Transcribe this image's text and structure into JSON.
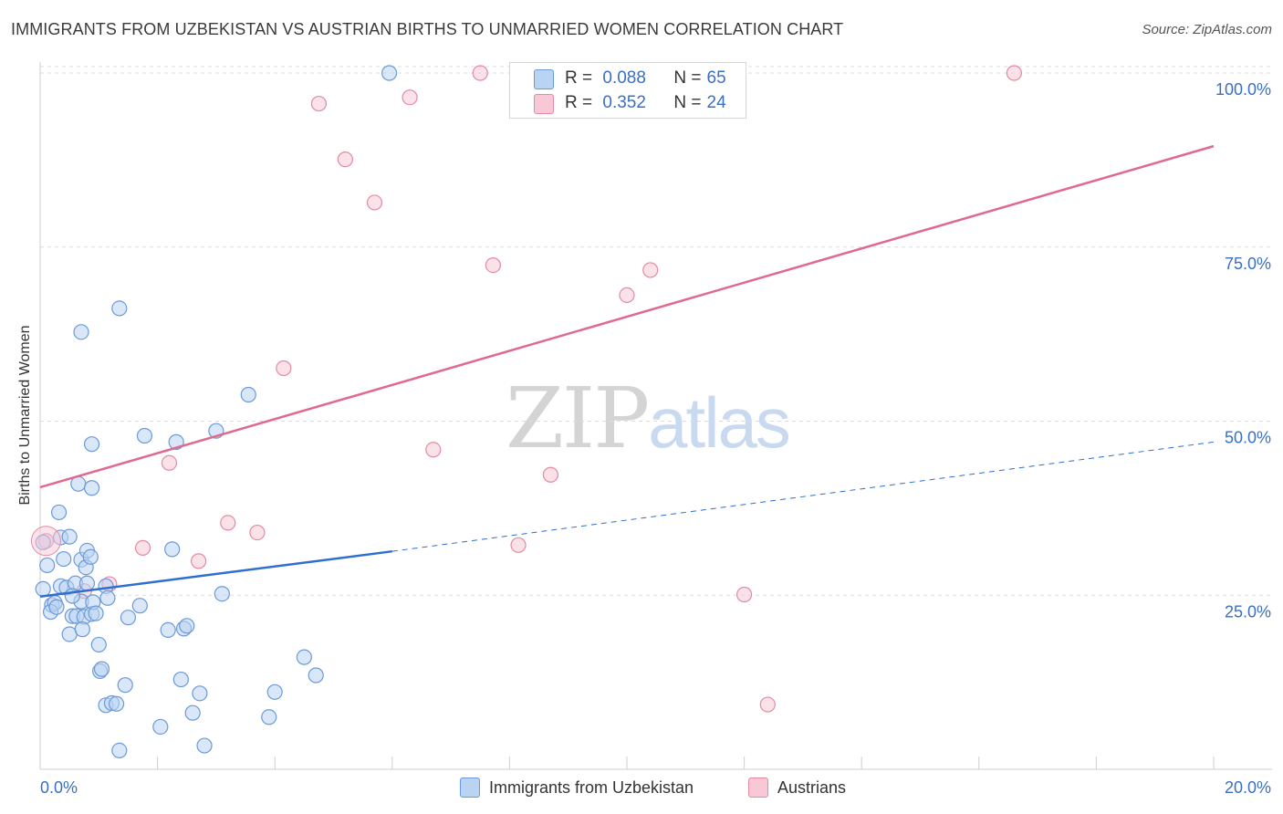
{
  "title": "IMMIGRANTS FROM UZBEKISTAN VS AUSTRIAN BIRTHS TO UNMARRIED WOMEN CORRELATION CHART",
  "source": "Source: ZipAtlas.com",
  "watermark": {
    "zip": "ZIP",
    "atlas": "atlas"
  },
  "legend_top": {
    "r_label": "R =",
    "n_label": "N =",
    "rows": [
      {
        "r": "0.088",
        "n": "65"
      },
      {
        "r": "0.352",
        "n": "24"
      }
    ]
  },
  "legend_bottom": [
    "Immigrants from Uzbekistan",
    "Austrians"
  ],
  "colors": {
    "blue_fill": "#b9d3f2",
    "blue_stroke": "#6a9ad8",
    "blue_line": "#2e6fd0",
    "pink_fill": "#f8c8d6",
    "pink_stroke": "#e28aa6",
    "pink_line": "#e06990",
    "tick_label": "#3a6fc4",
    "grid": "#dcdcdc"
  },
  "chart_data": {
    "type": "scatter",
    "title": "IMMIGRANTS FROM UZBEKISTAN VS AUSTRIAN BIRTHS TO UNMARRIED WOMEN CORRELATION CHART",
    "xlabel": "",
    "ylabel": "Births to Unmarried Women",
    "xlim": [
      0,
      20
    ],
    "ylim": [
      0,
      101
    ],
    "x_tick_labels": [
      {
        "v": 0,
        "label": "0.0%"
      },
      {
        "v": 20,
        "label": "20.0%"
      }
    ],
    "y_tick_labels": [
      {
        "v": 25,
        "label": "25.0%"
      },
      {
        "v": 50,
        "label": "50.0%"
      },
      {
        "v": 75,
        "label": "75.0%"
      },
      {
        "v": 100,
        "label": "100.0%"
      }
    ],
    "grid": true,
    "legend": "bottom",
    "series": [
      {
        "name": "Immigrants from Uzbekistan",
        "r": 0.088,
        "n": 65,
        "trend": {
          "x0": 0,
          "y0": 24.8,
          "x1": 6.0,
          "y1": 31.3,
          "dashed_to_x": 20,
          "dashed_to_y": 47.0
        },
        "points": [
          [
            0.05,
            32.6
          ],
          [
            0.12,
            29.3
          ],
          [
            0.05,
            25.9
          ],
          [
            0.2,
            23.6
          ],
          [
            0.25,
            23.9
          ],
          [
            0.18,
            22.6
          ],
          [
            0.35,
            26.3
          ],
          [
            0.4,
            30.2
          ],
          [
            0.45,
            26.1
          ],
          [
            0.35,
            33.3
          ],
          [
            0.32,
            36.9
          ],
          [
            0.5,
            33.4
          ],
          [
            0.5,
            19.4
          ],
          [
            0.55,
            22.0
          ],
          [
            0.6,
            26.7
          ],
          [
            0.62,
            22.0
          ],
          [
            0.7,
            30.1
          ],
          [
            0.7,
            24.1
          ],
          [
            0.75,
            21.9
          ],
          [
            0.72,
            20.1
          ],
          [
            0.78,
            29.0
          ],
          [
            0.8,
            26.7
          ],
          [
            0.8,
            31.4
          ],
          [
            0.86,
            30.5
          ],
          [
            0.88,
            22.3
          ],
          [
            0.9,
            24.0
          ],
          [
            0.95,
            22.4
          ],
          [
            1.0,
            17.9
          ],
          [
            1.02,
            14.1
          ],
          [
            1.05,
            14.4
          ],
          [
            1.12,
            26.3
          ],
          [
            1.15,
            24.6
          ],
          [
            1.12,
            9.2
          ],
          [
            1.22,
            9.5
          ],
          [
            1.3,
            9.4
          ],
          [
            1.35,
            2.7
          ],
          [
            1.45,
            12.1
          ],
          [
            1.5,
            21.8
          ],
          [
            1.7,
            23.5
          ],
          [
            1.78,
            47.9
          ],
          [
            2.05,
            6.1
          ],
          [
            2.18,
            20.0
          ],
          [
            2.25,
            31.6
          ],
          [
            2.32,
            47.0
          ],
          [
            2.4,
            12.9
          ],
          [
            2.45,
            20.2
          ],
          [
            2.5,
            20.6
          ],
          [
            2.6,
            8.1
          ],
          [
            2.72,
            10.9
          ],
          [
            2.8,
            3.4
          ],
          [
            3.0,
            48.6
          ],
          [
            3.1,
            25.2
          ],
          [
            3.55,
            53.8
          ],
          [
            3.9,
            7.5
          ],
          [
            4.0,
            11.1
          ],
          [
            4.5,
            16.1
          ],
          [
            4.7,
            13.5
          ],
          [
            0.65,
            41.0
          ],
          [
            0.88,
            40.4
          ],
          [
            0.88,
            46.7
          ],
          [
            0.7,
            62.8
          ],
          [
            1.35,
            66.2
          ],
          [
            5.95,
            100.0
          ],
          [
            0.28,
            23.3
          ],
          [
            0.55,
            24.9
          ]
        ]
      },
      {
        "name": "Austrians",
        "r": 0.352,
        "n": 24,
        "trend": {
          "x0": 0,
          "y0": 40.5,
          "x1": 20,
          "y1": 89.5
        },
        "points": [
          [
            0.1,
            32.8
          ],
          [
            0.75,
            25.6
          ],
          [
            1.18,
            26.6
          ],
          [
            1.75,
            31.8
          ],
          [
            2.2,
            44.0
          ],
          [
            2.7,
            29.9
          ],
          [
            3.2,
            35.4
          ],
          [
            3.7,
            34.0
          ],
          [
            4.15,
            57.6
          ],
          [
            4.75,
            95.6
          ],
          [
            5.2,
            87.6
          ],
          [
            5.7,
            81.4
          ],
          [
            6.3,
            96.5
          ],
          [
            6.7,
            45.9
          ],
          [
            7.5,
            100.0
          ],
          [
            7.72,
            72.4
          ],
          [
            8.15,
            32.2
          ],
          [
            8.7,
            42.3
          ],
          [
            10.0,
            68.1
          ],
          [
            10.4,
            71.7
          ],
          [
            11.1,
            100.0
          ],
          [
            12.0,
            25.1
          ],
          [
            12.4,
            9.3
          ],
          [
            16.6,
            100.0
          ]
        ]
      }
    ]
  }
}
